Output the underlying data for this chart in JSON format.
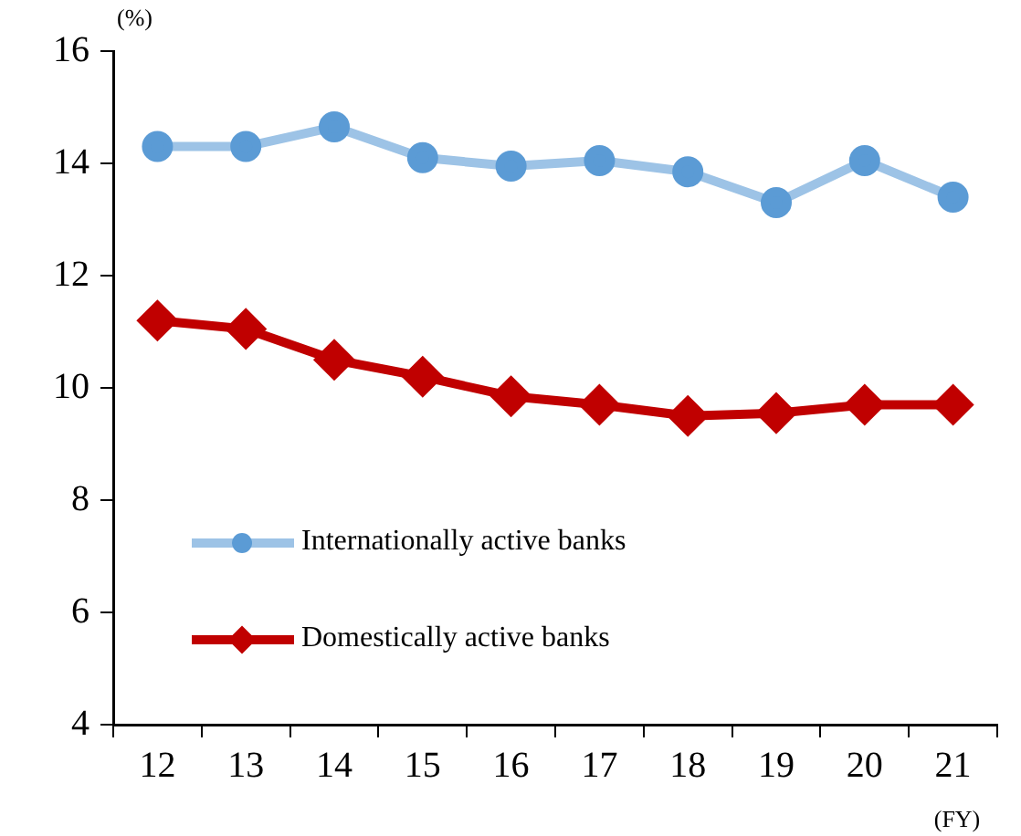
{
  "chart_data": {
    "type": "line",
    "ylabel": "(%)",
    "xlabel": "(FY)",
    "categories": [
      "12",
      "13",
      "14",
      "15",
      "16",
      "17",
      "18",
      "19",
      "20",
      "21"
    ],
    "ylim": [
      4,
      16
    ],
    "yticks": [
      4,
      6,
      8,
      10,
      12,
      14,
      16
    ],
    "grid": false,
    "legend": "left",
    "series": [
      {
        "name": "Internationally active banks",
        "color": "#9dc3e6",
        "colors": [
          "#5b9bd5",
          "#5b9bd5",
          "#5b9bd5",
          "#5b9bd5",
          "#5b9bd5",
          "#5b9bd5",
          "#5b9bd5",
          "#5b9bd5",
          "#5b9bd5",
          "#5b9bd5"
        ],
        "marker": "circle",
        "values": [
          14.3,
          14.3,
          14.65,
          14.1,
          13.95,
          14.05,
          13.85,
          13.3,
          14.05,
          13.4
        ]
      },
      {
        "name": "Domestically active banks",
        "color": "#c00000",
        "marker": "diamond",
        "values": [
          11.2,
          11.05,
          10.5,
          10.2,
          9.85,
          9.7,
          9.5,
          9.55,
          9.7,
          9.7
        ]
      }
    ]
  }
}
